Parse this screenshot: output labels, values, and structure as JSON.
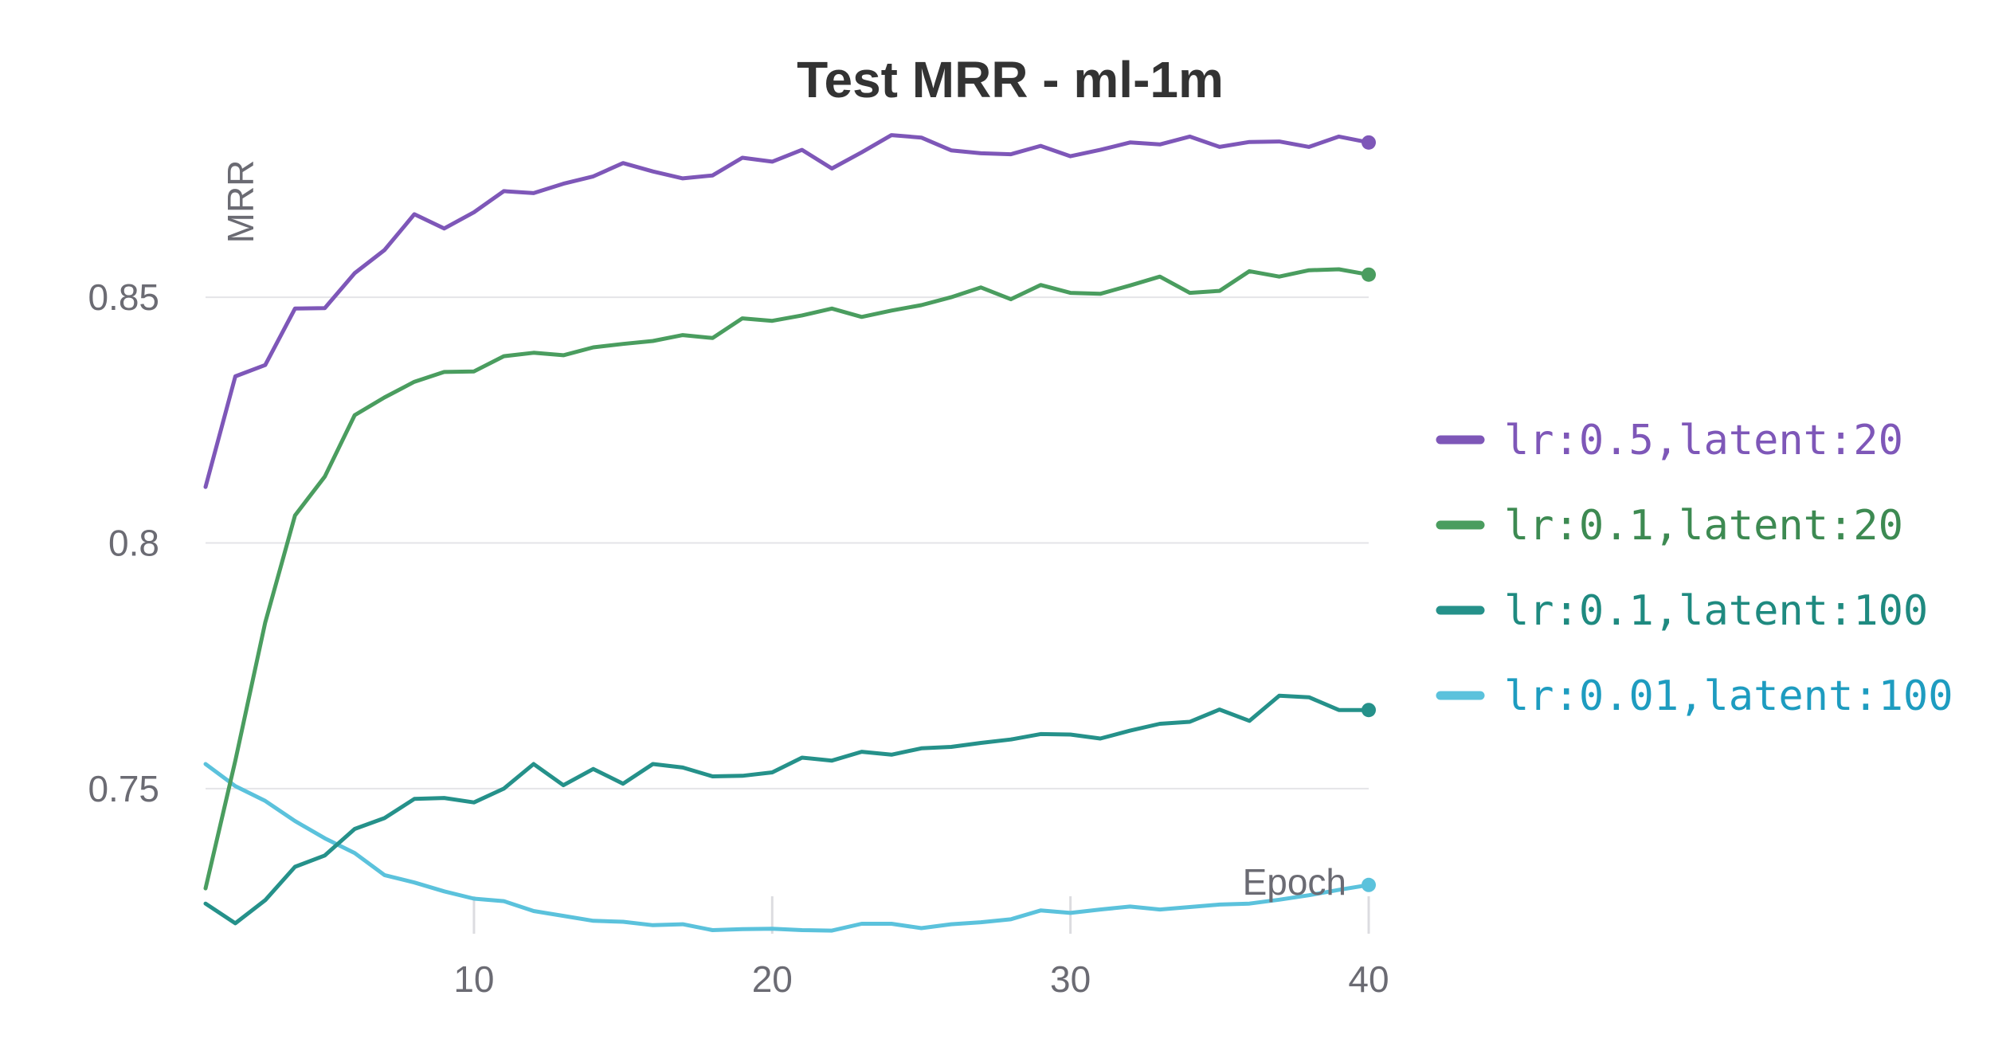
{
  "chart_data": {
    "type": "line",
    "title": "Test MRR - ml-1m",
    "xlabel": "Epoch",
    "ylabel": "MRR",
    "xlim": [
      1,
      40
    ],
    "ylim": [
      0.7195,
      0.8805
    ],
    "xticks": [
      10,
      20,
      30,
      40
    ],
    "xtick_labels": [
      "10",
      "20",
      "30",
      "40"
    ],
    "yticks": [
      0.75,
      0.8,
      0.85
    ],
    "ytick_labels": [
      "0.75",
      "0.8",
      "0.85"
    ],
    "grid": "horizontal",
    "legend_position": "right",
    "x": [
      1,
      2,
      3,
      4,
      5,
      6,
      7,
      8,
      9,
      10,
      11,
      12,
      13,
      14,
      15,
      16,
      17,
      18,
      19,
      20,
      21,
      22,
      23,
      24,
      25,
      26,
      27,
      28,
      29,
      30,
      31,
      32,
      33,
      34,
      35,
      36,
      37,
      38,
      39,
      40
    ],
    "series": [
      {
        "name": "lr:0.5,latent:20",
        "color": "#7e57b8",
        "label_color": "#7e57b8",
        "values": [
          0.8114,
          0.8339,
          0.8362,
          0.8477,
          0.8478,
          0.8549,
          0.8596,
          0.8669,
          0.864,
          0.8673,
          0.8716,
          0.8712,
          0.8731,
          0.8746,
          0.8773,
          0.8756,
          0.8742,
          0.8748,
          0.8784,
          0.8776,
          0.88,
          0.8762,
          0.8795,
          0.883,
          0.8825,
          0.8799,
          0.8793,
          0.8791,
          0.8808,
          0.8787,
          0.88,
          0.8815,
          0.8811,
          0.8827,
          0.8806,
          0.8816,
          0.8817,
          0.8806,
          0.8827,
          0.8815
        ]
      },
      {
        "name": "lr:0.1,latent:20",
        "color": "#4a9d5f",
        "label_color": "#3d8a52",
        "values": [
          0.7297,
          0.7557,
          0.7838,
          0.8056,
          0.8135,
          0.826,
          0.8296,
          0.8328,
          0.8348,
          0.8349,
          0.838,
          0.8387,
          0.8382,
          0.8398,
          0.8405,
          0.8411,
          0.8423,
          0.8417,
          0.8457,
          0.8452,
          0.8463,
          0.8477,
          0.846,
          0.8473,
          0.8484,
          0.85,
          0.852,
          0.8496,
          0.8525,
          0.8509,
          0.8507,
          0.8524,
          0.8542,
          0.8509,
          0.8513,
          0.8553,
          0.8542,
          0.8555,
          0.8557,
          0.8546
        ]
      },
      {
        "name": "lr:0.1,latent:100",
        "color": "#25918a",
        "label_color": "#1f8a80",
        "values": [
          0.7266,
          0.7226,
          0.7273,
          0.7341,
          0.7364,
          0.7418,
          0.744,
          0.7479,
          0.7481,
          0.7472,
          0.75,
          0.755,
          0.7507,
          0.754,
          0.751,
          0.755,
          0.7543,
          0.7525,
          0.7526,
          0.7533,
          0.7563,
          0.7557,
          0.7575,
          0.7569,
          0.7582,
          0.7585,
          0.7593,
          0.76,
          0.7611,
          0.761,
          0.7602,
          0.7618,
          0.7632,
          0.7636,
          0.7661,
          0.7638,
          0.7689,
          0.7686,
          0.766,
          0.766
        ]
      },
      {
        "name": "lr:0.01,latent:100",
        "color": "#5bc2dc",
        "label_color": "#1e9cc0",
        "values": [
          0.755,
          0.7505,
          0.7475,
          0.7434,
          0.7399,
          0.7369,
          0.7324,
          0.7309,
          0.7291,
          0.7276,
          0.7271,
          0.7251,
          0.7241,
          0.7231,
          0.7229,
          0.7222,
          0.7224,
          0.7212,
          0.7214,
          0.7215,
          0.7212,
          0.7211,
          0.7225,
          0.7225,
          0.7216,
          0.7224,
          0.7228,
          0.7234,
          0.7252,
          0.7247,
          0.7254,
          0.726,
          0.7254,
          0.7259,
          0.7264,
          0.7266,
          0.7274,
          0.7283,
          0.7294,
          0.7304
        ]
      }
    ]
  }
}
